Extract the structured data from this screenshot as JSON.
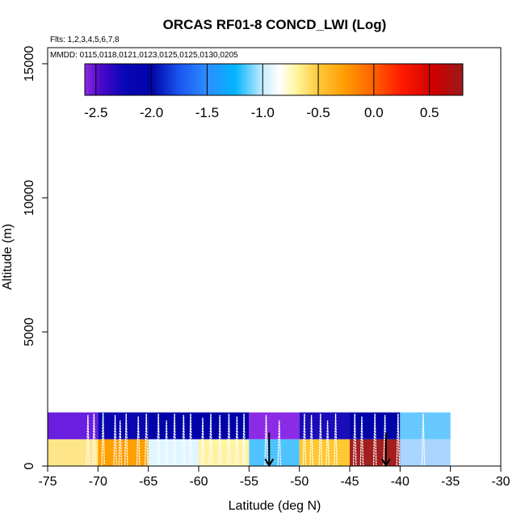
{
  "chart_data": {
    "type": "heatmap",
    "title": "ORCAS RF01-8 CONCD_LWI (Log)",
    "flights_label": "Flts: 1,2,3,4,5,6,7,8",
    "dates_label": "MMDD: 0115,0118,0121,0123,0125,0125,0130,0205",
    "xlabel": "Latitude (deg N)",
    "ylabel": "Altitude (m)",
    "xlim": [
      -75,
      -30
    ],
    "ylim": [
      0,
      15600
    ],
    "xticks": [
      "-75",
      "-70",
      "-65",
      "-60",
      "-55",
      "-50",
      "-45",
      "-40",
      "-35",
      "-30"
    ],
    "yticks": [
      "0",
      "5000",
      "10000",
      "15000"
    ],
    "colorbar": {
      "range": [
        -2.6,
        0.8
      ],
      "ticks": [
        "-2.5",
        "-2.0",
        "-1.5",
        "-1.0",
        "-0.5",
        "0.0",
        "0.5"
      ],
      "gradient": [
        {
          "v": -2.6,
          "c": "#8b2be6"
        },
        {
          "v": -2.45,
          "c": "#4a08c8"
        },
        {
          "v": -2.25,
          "c": "#0a06b8"
        },
        {
          "v": -2.0,
          "c": "#0004a8"
        },
        {
          "v": -1.75,
          "c": "#1a55f0"
        },
        {
          "v": -1.5,
          "c": "#2d8cff"
        },
        {
          "v": -1.25,
          "c": "#00b4ff"
        },
        {
          "v": -1.0,
          "c": "#c6ecff"
        },
        {
          "v": -0.85,
          "c": "#ffffff"
        },
        {
          "v": -0.7,
          "c": "#fff6a0"
        },
        {
          "v": -0.5,
          "c": "#ffc93a"
        },
        {
          "v": -0.25,
          "c": "#ff9a00"
        },
        {
          "v": 0.0,
          "c": "#ff6000"
        },
        {
          "v": 0.25,
          "c": "#ff1a00"
        },
        {
          "v": 0.55,
          "c": "#cc0000"
        },
        {
          "v": 0.8,
          "c": "#9a1a1a"
        }
      ]
    },
    "cells": [
      {
        "lat0": -75,
        "lat1": -70,
        "alt0": 0,
        "alt1": 1000,
        "color": "#ffe58a"
      },
      {
        "lat0": -70,
        "lat1": -65,
        "alt0": 0,
        "alt1": 1000,
        "color": "#ff9f00"
      },
      {
        "lat0": -65,
        "lat1": -60,
        "alt0": 0,
        "alt1": 1000,
        "color": "#dff5ff"
      },
      {
        "lat0": -60,
        "lat1": -55,
        "alt0": 0,
        "alt1": 1000,
        "color": "#fff2a0"
      },
      {
        "lat0": -55,
        "lat1": -50,
        "alt0": 0,
        "alt1": 1000,
        "color": "#4ec3ff"
      },
      {
        "lat0": -50,
        "lat1": -45,
        "alt0": 0,
        "alt1": 1000,
        "color": "#ffc830"
      },
      {
        "lat0": -45,
        "lat1": -40,
        "alt0": 0,
        "alt1": 1000,
        "color": "#a31f1f"
      },
      {
        "lat0": -40,
        "lat1": -35,
        "alt0": 0,
        "alt1": 1000,
        "color": "#a9d5ff"
      },
      {
        "lat0": -75,
        "lat1": -70,
        "alt0": 1000,
        "alt1": 2000,
        "color": "#6a1ee0"
      },
      {
        "lat0": -70,
        "lat1": -65,
        "alt0": 1000,
        "alt1": 2000,
        "color": "#0a06b0"
      },
      {
        "lat0": -65,
        "lat1": -60,
        "alt0": 1000,
        "alt1": 2000,
        "color": "#0004a8"
      },
      {
        "lat0": -60,
        "lat1": -55,
        "alt0": 1000,
        "alt1": 2000,
        "color": "#0004a8"
      },
      {
        "lat0": -55,
        "lat1": -50,
        "alt0": 1000,
        "alt1": 2000,
        "color": "#8b2be6"
      },
      {
        "lat0": -50,
        "lat1": -45,
        "alt0": 1000,
        "alt1": 2000,
        "color": "#1a0cb8"
      },
      {
        "lat0": -45,
        "lat1": -40,
        "alt0": 1000,
        "alt1": 2000,
        "color": "#0004a8"
      },
      {
        "lat0": -40,
        "lat1": -35,
        "alt0": 1000,
        "alt1": 2000,
        "color": "#66c8ff"
      }
    ],
    "track_spikes": [
      {
        "lat": -71.0,
        "top": 1900
      },
      {
        "lat": -70.4,
        "top": 1950
      },
      {
        "lat": -69.5,
        "top": 1980
      },
      {
        "lat": -68.3,
        "top": 1900
      },
      {
        "lat": -67.8,
        "top": 1700
      },
      {
        "lat": -67.2,
        "top": 1950
      },
      {
        "lat": -66.0,
        "top": 1850
      },
      {
        "lat": -65.2,
        "top": 1950
      },
      {
        "lat": -64.0,
        "top": 1950
      },
      {
        "lat": -63.2,
        "top": 1700
      },
      {
        "lat": -62.4,
        "top": 1950
      },
      {
        "lat": -61.5,
        "top": 1900
      },
      {
        "lat": -60.8,
        "top": 1950
      },
      {
        "lat": -59.6,
        "top": 1800
      },
      {
        "lat": -58.8,
        "top": 1950
      },
      {
        "lat": -57.9,
        "top": 1900
      },
      {
        "lat": -57.0,
        "top": 1950
      },
      {
        "lat": -56.2,
        "top": 1850
      },
      {
        "lat": -55.5,
        "top": 1950
      },
      {
        "lat": -53.3,
        "top": 1900
      },
      {
        "lat": -52.0,
        "top": 1700
      },
      {
        "lat": -49.5,
        "top": 1950
      },
      {
        "lat": -48.8,
        "top": 1900
      },
      {
        "lat": -47.9,
        "top": 1950
      },
      {
        "lat": -47.2,
        "top": 1700
      },
      {
        "lat": -46.4,
        "top": 1950
      },
      {
        "lat": -44.5,
        "top": 1950
      },
      {
        "lat": -43.8,
        "top": 1850
      },
      {
        "lat": -42.5,
        "top": 1950
      },
      {
        "lat": -41.5,
        "top": 1900
      },
      {
        "lat": -40.2,
        "top": 1950
      },
      {
        "lat": -37.7,
        "top": 1950
      }
    ],
    "arrows": [
      {
        "lat": -53.0
      },
      {
        "lat": -41.4
      }
    ]
  }
}
